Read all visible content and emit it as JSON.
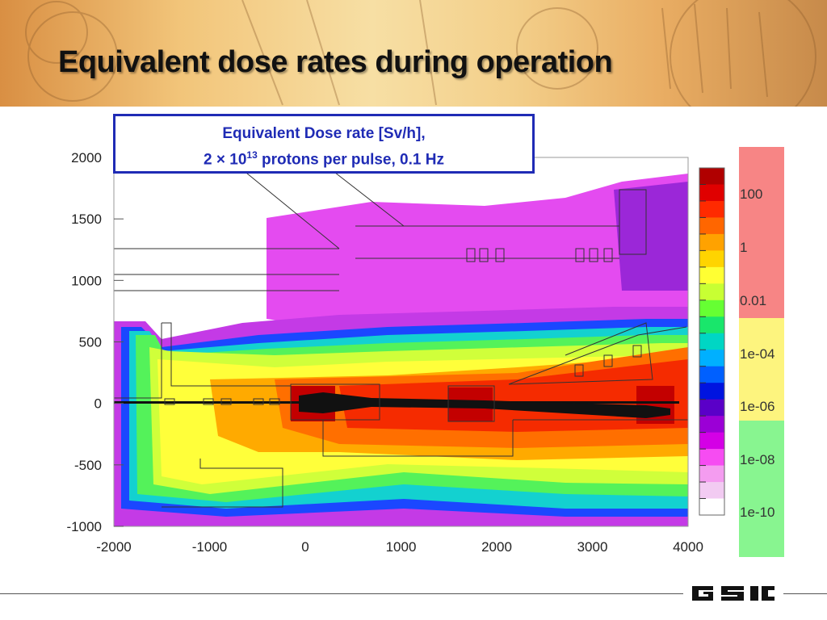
{
  "slide": {
    "title": "Equivalent dose rates during operation"
  },
  "callout": {
    "line1": "Equivalent Dose rate [Sv/h],",
    "line2_prefix": "2 × 10",
    "line2_exp": "13",
    "line2_suffix": " protons per pulse, 0.1 Hz"
  },
  "chart_data": {
    "type": "heatmap",
    "title": "Equivalent Dose rate [Sv/h], 2 × 10^13 protons per pulse, 0.1 Hz",
    "xlim": [
      -2000,
      4000
    ],
    "ylim": [
      -1000,
      2000
    ],
    "x_ticks": [
      "-2000",
      "-1000",
      "0",
      "1000",
      "2000",
      "3000",
      "4000"
    ],
    "y_ticks": [
      "2000",
      "1500",
      "1000",
      "500",
      "0",
      "-500",
      "-1000"
    ],
    "colorbar": {
      "colors": [
        "#b00000",
        "#e00000",
        "#ff2a00",
        "#ff6600",
        "#ffa200",
        "#ffd400",
        "#ffff33",
        "#c8ff33",
        "#66ff33",
        "#19e66b",
        "#00d6c4",
        "#00b0ff",
        "#0060ff",
        "#0014e0",
        "#5a00c8",
        "#9b00d6",
        "#d400e6",
        "#f64cf2",
        "#f49cf0",
        "#f2cbf2",
        "#ffffff"
      ],
      "band_labels": [
        {
          "label": "100",
          "zone": "red"
        },
        {
          "label": "1",
          "zone": "red"
        },
        {
          "label": "0.01",
          "zone": "red"
        },
        {
          "label": "1e-04",
          "zone": "yellow"
        },
        {
          "label": "1e-06",
          "zone": "yellow"
        },
        {
          "label": "1e-08",
          "zone": "green"
        },
        {
          "label": "1e-10",
          "zone": "green"
        }
      ],
      "zone_colors": {
        "red": "#f78585",
        "yellow": "#fdf47e",
        "green": "#88f590"
      }
    }
  },
  "logo": {
    "text": "GSI"
  }
}
